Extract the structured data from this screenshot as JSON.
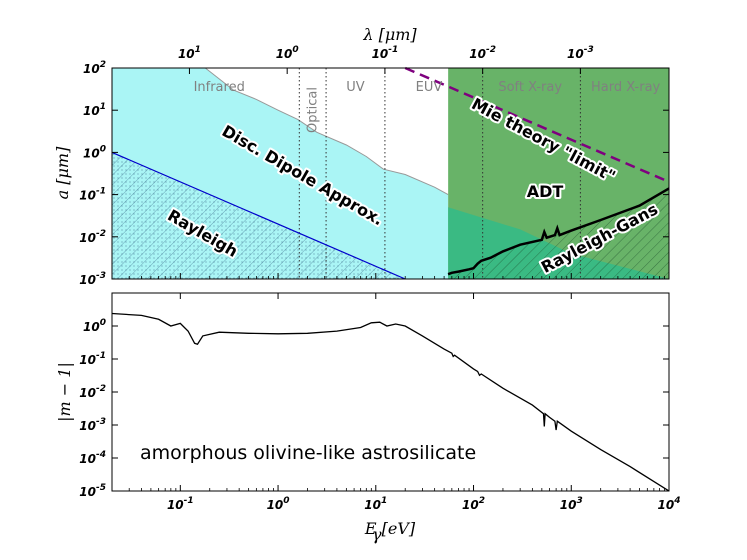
{
  "chart_data": [
    {
      "type": "area",
      "panel": "top",
      "xscale": "log",
      "yscale": "log",
      "xlim": [
        0.02,
        10000
      ],
      "ylim": [
        0.001,
        100
      ],
      "ylabel": "a [μm]",
      "top_axis": {
        "label": "λ [μm]",
        "ticks": [
          {
            "wavelength_um": 10,
            "label": "10"
          },
          {
            "wavelength_um": 1,
            "label": "10"
          },
          {
            "wavelength_um": 0.1,
            "label": "10"
          },
          {
            "wavelength_um": 0.01,
            "label": "10"
          },
          {
            "wavelength_um": 0.001,
            "label": "10"
          }
        ],
        "exponents": [
          "1",
          "0",
          "-1",
          "-2",
          "-3"
        ]
      },
      "y_ticks": [
        {
          "value": 100,
          "base": "10",
          "exp": "2"
        },
        {
          "value": 10,
          "base": "10",
          "exp": "1"
        },
        {
          "value": 1,
          "base": "10",
          "exp": "0"
        },
        {
          "value": 0.1,
          "base": "10",
          "exp": "-1"
        },
        {
          "value": 0.01,
          "base": "10",
          "exp": "-2"
        },
        {
          "value": 0.001,
          "base": "10",
          "exp": "-3"
        }
      ],
      "band_boundaries_eV": [
        1.65,
        3.1,
        12.4,
        124,
        1240
      ],
      "bands": [
        {
          "label": "Infrared",
          "e_eV": 0.25
        },
        {
          "label": "Optical",
          "e_eV": 2.26,
          "rotated": true
        },
        {
          "label": "UV",
          "e_eV": 6.2
        },
        {
          "label": "EUV",
          "e_eV": 35
        },
        {
          "label": "Soft X-ray",
          "e_eV": 380
        },
        {
          "label": "Hard X-ray",
          "e_eV": 3600
        }
      ],
      "regions": {
        "dda": {
          "label": "Disc. Dipole Approx.",
          "color": "#aaf5f5",
          "upper_boundary": [
            [
              0.02,
              100
            ],
            [
              0.18,
              100
            ],
            [
              0.35,
              30
            ],
            [
              0.6,
              18
            ],
            [
              1.0,
              10
            ],
            [
              1.6,
              6
            ],
            [
              2.5,
              3
            ],
            [
              5,
              1.5
            ],
            [
              8,
              0.8
            ],
            [
              12,
              0.4
            ],
            [
              20,
              0.3
            ],
            [
              40,
              0.15
            ],
            [
              55,
              0.1
            ]
          ]
        },
        "rayleigh": {
          "label": "Rayleigh",
          "line": [
            [
              0.02,
              1.0
            ],
            [
              20,
              0.001
            ]
          ]
        },
        "adt": {
          "label": "ADT",
          "color": "#4da64d",
          "e_min_eV": 55
        },
        "rayleigh_gans": {
          "label": "Rayleigh-Gans",
          "color": "#33bb88",
          "upper_boundary": [
            [
              55,
              0.05
            ],
            [
              300,
              0.015
            ],
            [
              1000,
              0.004
            ],
            [
              10000,
              0.001
            ]
          ]
        },
        "adt_lower_limit": {
          "curve": [
            [
              55,
              0.0013
            ],
            [
              60,
              0.0014
            ],
            [
              70,
              0.0015
            ],
            [
              90,
              0.0017
            ],
            [
              100,
              0.0018
            ],
            [
              110,
              0.0023
            ],
            [
              120,
              0.0027
            ],
            [
              150,
              0.0032
            ],
            [
              200,
              0.0045
            ],
            [
              300,
              0.0065
            ],
            [
              500,
              0.0085
            ],
            [
              530,
              0.013
            ],
            [
              560,
              0.0095
            ],
            [
              680,
              0.011
            ],
            [
              720,
              0.016
            ],
            [
              760,
              0.011
            ],
            [
              1000,
              0.014
            ],
            [
              2000,
              0.025
            ],
            [
              5000,
              0.055
            ],
            [
              10000,
              0.14
            ]
          ]
        },
        "mie_limit": {
          "label": "Mie theory \"limit\"",
          "color": "#7f007f",
          "line": [
            [
              20,
              100
            ],
            [
              10000,
              0.2
            ]
          ]
        }
      }
    },
    {
      "type": "line",
      "panel": "bottom",
      "xscale": "log",
      "yscale": "log",
      "xlim": [
        0.02,
        10000
      ],
      "ylim": [
        1e-05,
        10
      ],
      "xlabel": "E [eV]",
      "xlabel_sub": "γ",
      "ylabel": "|m − 1|",
      "annotation": "amorphous olivine-like astrosilicate",
      "x_ticks": [
        {
          "value": 0.1,
          "base": "10",
          "exp": "-1"
        },
        {
          "value": 1,
          "base": "10",
          "exp": "0"
        },
        {
          "value": 10,
          "base": "10",
          "exp": "1"
        },
        {
          "value": 100,
          "base": "10",
          "exp": "2"
        },
        {
          "value": 1000,
          "base": "10",
          "exp": "3"
        },
        {
          "value": 10000,
          "base": "10",
          "exp": "4"
        }
      ],
      "y_ticks": [
        {
          "value": 1,
          "base": "10",
          "exp": "0"
        },
        {
          "value": 0.1,
          "base": "10",
          "exp": "-1"
        },
        {
          "value": 0.01,
          "base": "10",
          "exp": "-2"
        },
        {
          "value": 0.001,
          "base": "10",
          "exp": "-3"
        },
        {
          "value": 0.0001,
          "base": "10",
          "exp": "-4"
        },
        {
          "value": 1e-05,
          "base": "10",
          "exp": "-5"
        }
      ],
      "series": [
        {
          "name": "|m-1|",
          "points": [
            [
              0.02,
              2.4
            ],
            [
              0.04,
              2.1
            ],
            [
              0.06,
              1.6
            ],
            [
              0.08,
              1.0
            ],
            [
              0.1,
              1.2
            ],
            [
              0.12,
              0.7
            ],
            [
              0.14,
              0.3
            ],
            [
              0.15,
              0.28
            ],
            [
              0.17,
              0.5
            ],
            [
              0.25,
              0.65
            ],
            [
              0.5,
              0.6
            ],
            [
              1,
              0.58
            ],
            [
              2,
              0.6
            ],
            [
              4,
              0.7
            ],
            [
              7,
              0.9
            ],
            [
              9,
              1.25
            ],
            [
              11,
              1.3
            ],
            [
              13,
              1.0
            ],
            [
              16,
              1.15
            ],
            [
              20,
              1.0
            ],
            [
              30,
              0.5
            ],
            [
              50,
              0.2
            ],
            [
              60,
              0.15
            ],
            [
              62,
              0.12
            ],
            [
              64,
              0.13
            ],
            [
              100,
              0.05
            ],
            [
              110,
              0.042
            ],
            [
              115,
              0.032
            ],
            [
              120,
              0.035
            ],
            [
              200,
              0.013
            ],
            [
              400,
              0.004
            ],
            [
              520,
              0.0022
            ],
            [
              530,
              0.0009
            ],
            [
              540,
              0.0022
            ],
            [
              600,
              0.0017
            ],
            [
              680,
              0.0013
            ],
            [
              700,
              0.0007
            ],
            [
              720,
              0.0013
            ],
            [
              1000,
              0.00065
            ],
            [
              2000,
              0.00018
            ],
            [
              4000,
              5.5e-05
            ],
            [
              10000,
              1e-05
            ]
          ]
        }
      ]
    }
  ]
}
